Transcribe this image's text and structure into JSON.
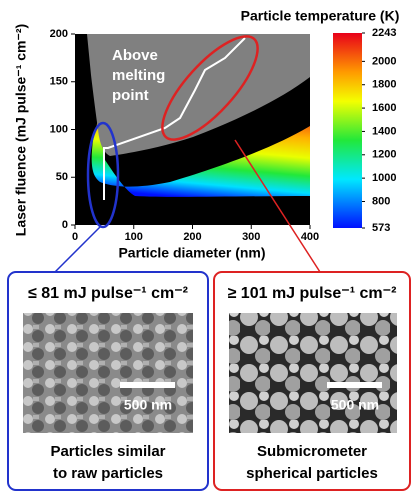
{
  "chart_data": {
    "type": "heatmap",
    "title": "Particle temperature (K)",
    "x_label": "Particle diameter (nm)",
    "y_label": "Laser fluence (mJ pulse⁻¹ cm⁻²)",
    "xlim": [
      0,
      400
    ],
    "xticks": [
      0,
      100,
      200,
      300,
      400
    ],
    "ylim": [
      0,
      200
    ],
    "yticks": [
      0,
      50,
      100,
      150,
      200
    ],
    "colorbar": {
      "lim": [
        573,
        2243
      ],
      "ticks": [
        573,
        800,
        1000,
        1200,
        1400,
        1600,
        1800,
        2000,
        2243
      ]
    },
    "annotation": "Above melting point"
  },
  "panels": [
    {
      "title": "≤ 81 mJ pulse⁻¹ cm⁻²",
      "scale_bar": "500 nm",
      "caption": [
        "Particles similar",
        "to raw particles"
      ]
    },
    {
      "title": "≥ 101 mJ pulse⁻¹ cm⁻²",
      "scale_bar": "500 nm",
      "caption": [
        "Submicrometer",
        "spherical particles"
      ]
    }
  ]
}
